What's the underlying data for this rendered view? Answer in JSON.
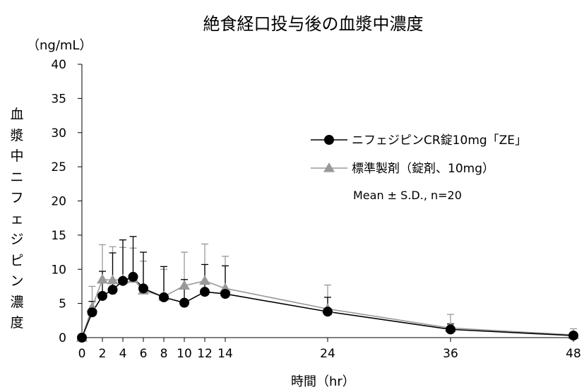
{
  "chart_data": {
    "type": "line",
    "title": "絶食経口投与後の血漿中濃度",
    "unit_label": "（ng/mL）",
    "ylabel": "血漿中ニフェジピン濃度",
    "xlabel": "時間（hr）",
    "ylim": [
      0,
      40
    ],
    "y_ticks": [
      0,
      5,
      10,
      15,
      20,
      25,
      30,
      35,
      40
    ],
    "xlim": [
      0,
      48
    ],
    "x_ticks": [
      0,
      2,
      4,
      6,
      8,
      10,
      12,
      14,
      24,
      36,
      48
    ],
    "note": "Mean ± S.D., n=20",
    "legend_position": "right",
    "grid": false,
    "series": [
      {
        "name": "ニフェジピンCR錠10mg「ZE」",
        "marker": "circle",
        "color": "#000000",
        "x": [
          0,
          1,
          2,
          3,
          4,
          5,
          6,
          8,
          10,
          12,
          14,
          24,
          36,
          48
        ],
        "y": [
          0,
          3.7,
          6.1,
          7.0,
          8.3,
          8.9,
          7.2,
          5.9,
          5.1,
          6.7,
          6.4,
          3.8,
          1.2,
          0.3
        ],
        "sd": [
          0,
          1.6,
          3.6,
          5.4,
          6.0,
          5.9,
          5.3,
          4.5,
          3.4,
          4.0,
          4.1,
          2.1,
          0.8,
          0.4
        ]
      },
      {
        "name": "標準製剤（錠剤、10mg）",
        "marker": "triangle",
        "color": "#999999",
        "x": [
          0,
          1,
          2,
          3,
          4,
          5,
          6,
          8,
          10,
          12,
          14,
          24,
          36,
          48
        ],
        "y": [
          0,
          4.4,
          8.5,
          8.4,
          8.5,
          8.6,
          6.9,
          6.0,
          7.6,
          8.3,
          7.2,
          4.2,
          1.4,
          0.4
        ],
        "sd": [
          0,
          3.1,
          5.1,
          4.9,
          4.7,
          4.5,
          4.3,
          4.0,
          4.9,
          5.4,
          4.7,
          3.5,
          2.0,
          0.9
        ]
      }
    ]
  }
}
